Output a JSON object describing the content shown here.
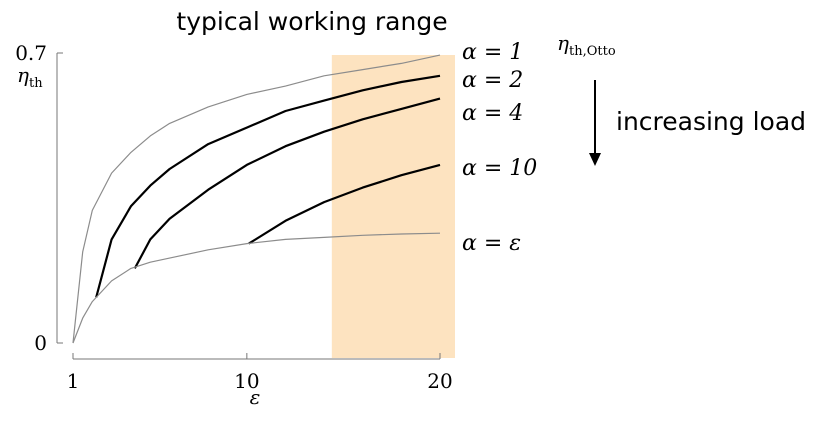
{
  "chart_data": {
    "type": "line",
    "title": "typical working range",
    "xlabel": "ε",
    "ylabel": "η_th",
    "xlim": [
      1,
      20
    ],
    "ylim": [
      0,
      0.7
    ],
    "x_ticks": [
      "1",
      "10",
      "20"
    ],
    "y_ticks": [
      "0",
      "0.7"
    ],
    "highlight": {
      "label": "typical working range",
      "x_range": [
        14.4,
        21.6
      ],
      "color": "#fde3c0"
    },
    "series": [
      {
        "name": "α = 1",
        "color": "#8c8c8c",
        "x": [
          1,
          1.5,
          2,
          3,
          4,
          5,
          6,
          8,
          10,
          12,
          14,
          16,
          18,
          20
        ],
        "y": [
          0,
          0.22,
          0.32,
          0.41,
          0.46,
          0.5,
          0.53,
          0.57,
          0.6,
          0.62,
          0.645,
          0.66,
          0.675,
          0.695
        ]
      },
      {
        "name": "α = 2",
        "color": "#000000",
        "x": [
          2.2,
          3,
          4,
          5,
          6,
          8,
          10,
          12,
          14,
          16,
          18,
          20
        ],
        "y": [
          0.11,
          0.25,
          0.33,
          0.38,
          0.42,
          0.48,
          0.52,
          0.56,
          0.585,
          0.61,
          0.63,
          0.645
        ]
      },
      {
        "name": "α = 4",
        "color": "#000000",
        "x": [
          4.2,
          5,
          6,
          8,
          10,
          12,
          14,
          16,
          18,
          20
        ],
        "y": [
          0.18,
          0.25,
          0.3,
          0.37,
          0.43,
          0.475,
          0.51,
          0.54,
          0.565,
          0.59
        ]
      },
      {
        "name": "α = 10",
        "color": "#000000",
        "x": [
          10.1,
          12,
          14,
          16,
          18,
          20
        ],
        "y": [
          0.24,
          0.295,
          0.34,
          0.375,
          0.405,
          0.43
        ]
      },
      {
        "name": "α = ε",
        "color": "#8c8c8c",
        "x": [
          1,
          1.5,
          2,
          3,
          4,
          5,
          6,
          8,
          10,
          12,
          14,
          16,
          18,
          20
        ],
        "y": [
          0,
          0.06,
          0.1,
          0.15,
          0.18,
          0.195,
          0.205,
          0.225,
          0.24,
          0.25,
          0.255,
          0.26,
          0.263,
          0.265
        ]
      }
    ],
    "annotations": {
      "otto_label": "η_th,Otto",
      "arrow_label": "increasing load"
    }
  }
}
